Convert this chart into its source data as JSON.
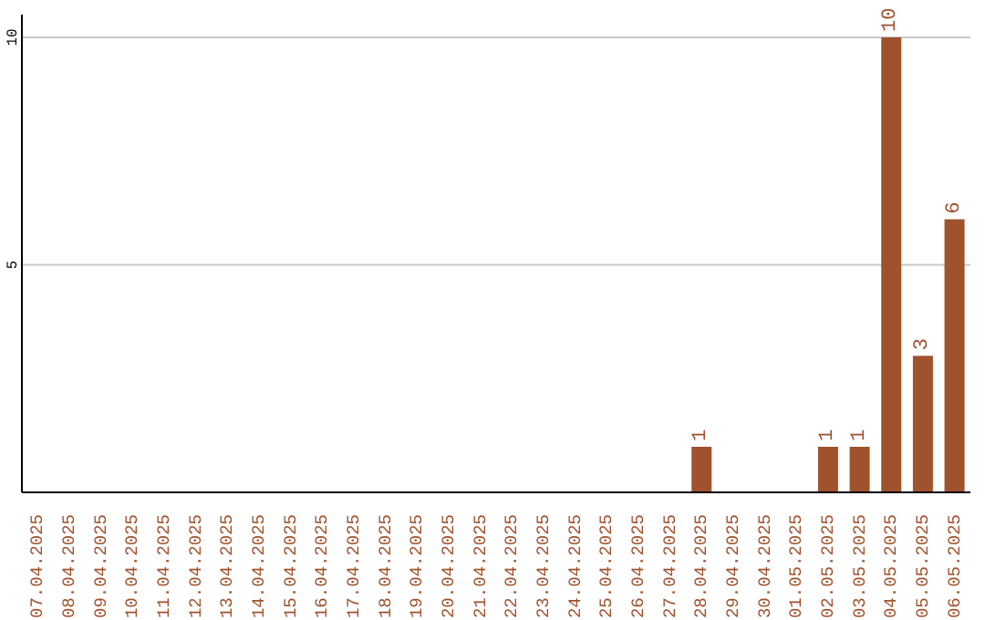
{
  "chart_data": {
    "type": "bar",
    "categories": [
      "07.04.2025",
      "08.04.2025",
      "09.04.2025",
      "10.04.2025",
      "11.04.2025",
      "12.04.2025",
      "13.04.2025",
      "14.04.2025",
      "15.04.2025",
      "16.04.2025",
      "17.04.2025",
      "18.04.2025",
      "19.04.2025",
      "20.04.2025",
      "21.04.2025",
      "22.04.2025",
      "23.04.2025",
      "24.04.2025",
      "25.04.2025",
      "26.04.2025",
      "27.04.2025",
      "28.04.2025",
      "29.04.2025",
      "30.04.2025",
      "01.05.2025",
      "02.05.2025",
      "03.05.2025",
      "04.05.2025",
      "05.05.2025",
      "06.05.2025"
    ],
    "values": [
      0,
      0,
      0,
      0,
      0,
      0,
      0,
      0,
      0,
      0,
      0,
      0,
      0,
      0,
      0,
      0,
      0,
      0,
      0,
      0,
      0,
      1,
      0,
      0,
      0,
      1,
      1,
      10,
      3,
      6
    ],
    "value_labels": [
      null,
      null,
      null,
      null,
      null,
      null,
      null,
      null,
      null,
      null,
      null,
      null,
      null,
      null,
      null,
      null,
      null,
      null,
      null,
      null,
      null,
      "1",
      null,
      null,
      null,
      "1",
      "1",
      "10",
      "3",
      "6"
    ],
    "color": "#a0522d",
    "ylim": [
      0,
      10.5
    ],
    "yticks": [
      5,
      10
    ],
    "grid": "y",
    "legend": false
  }
}
